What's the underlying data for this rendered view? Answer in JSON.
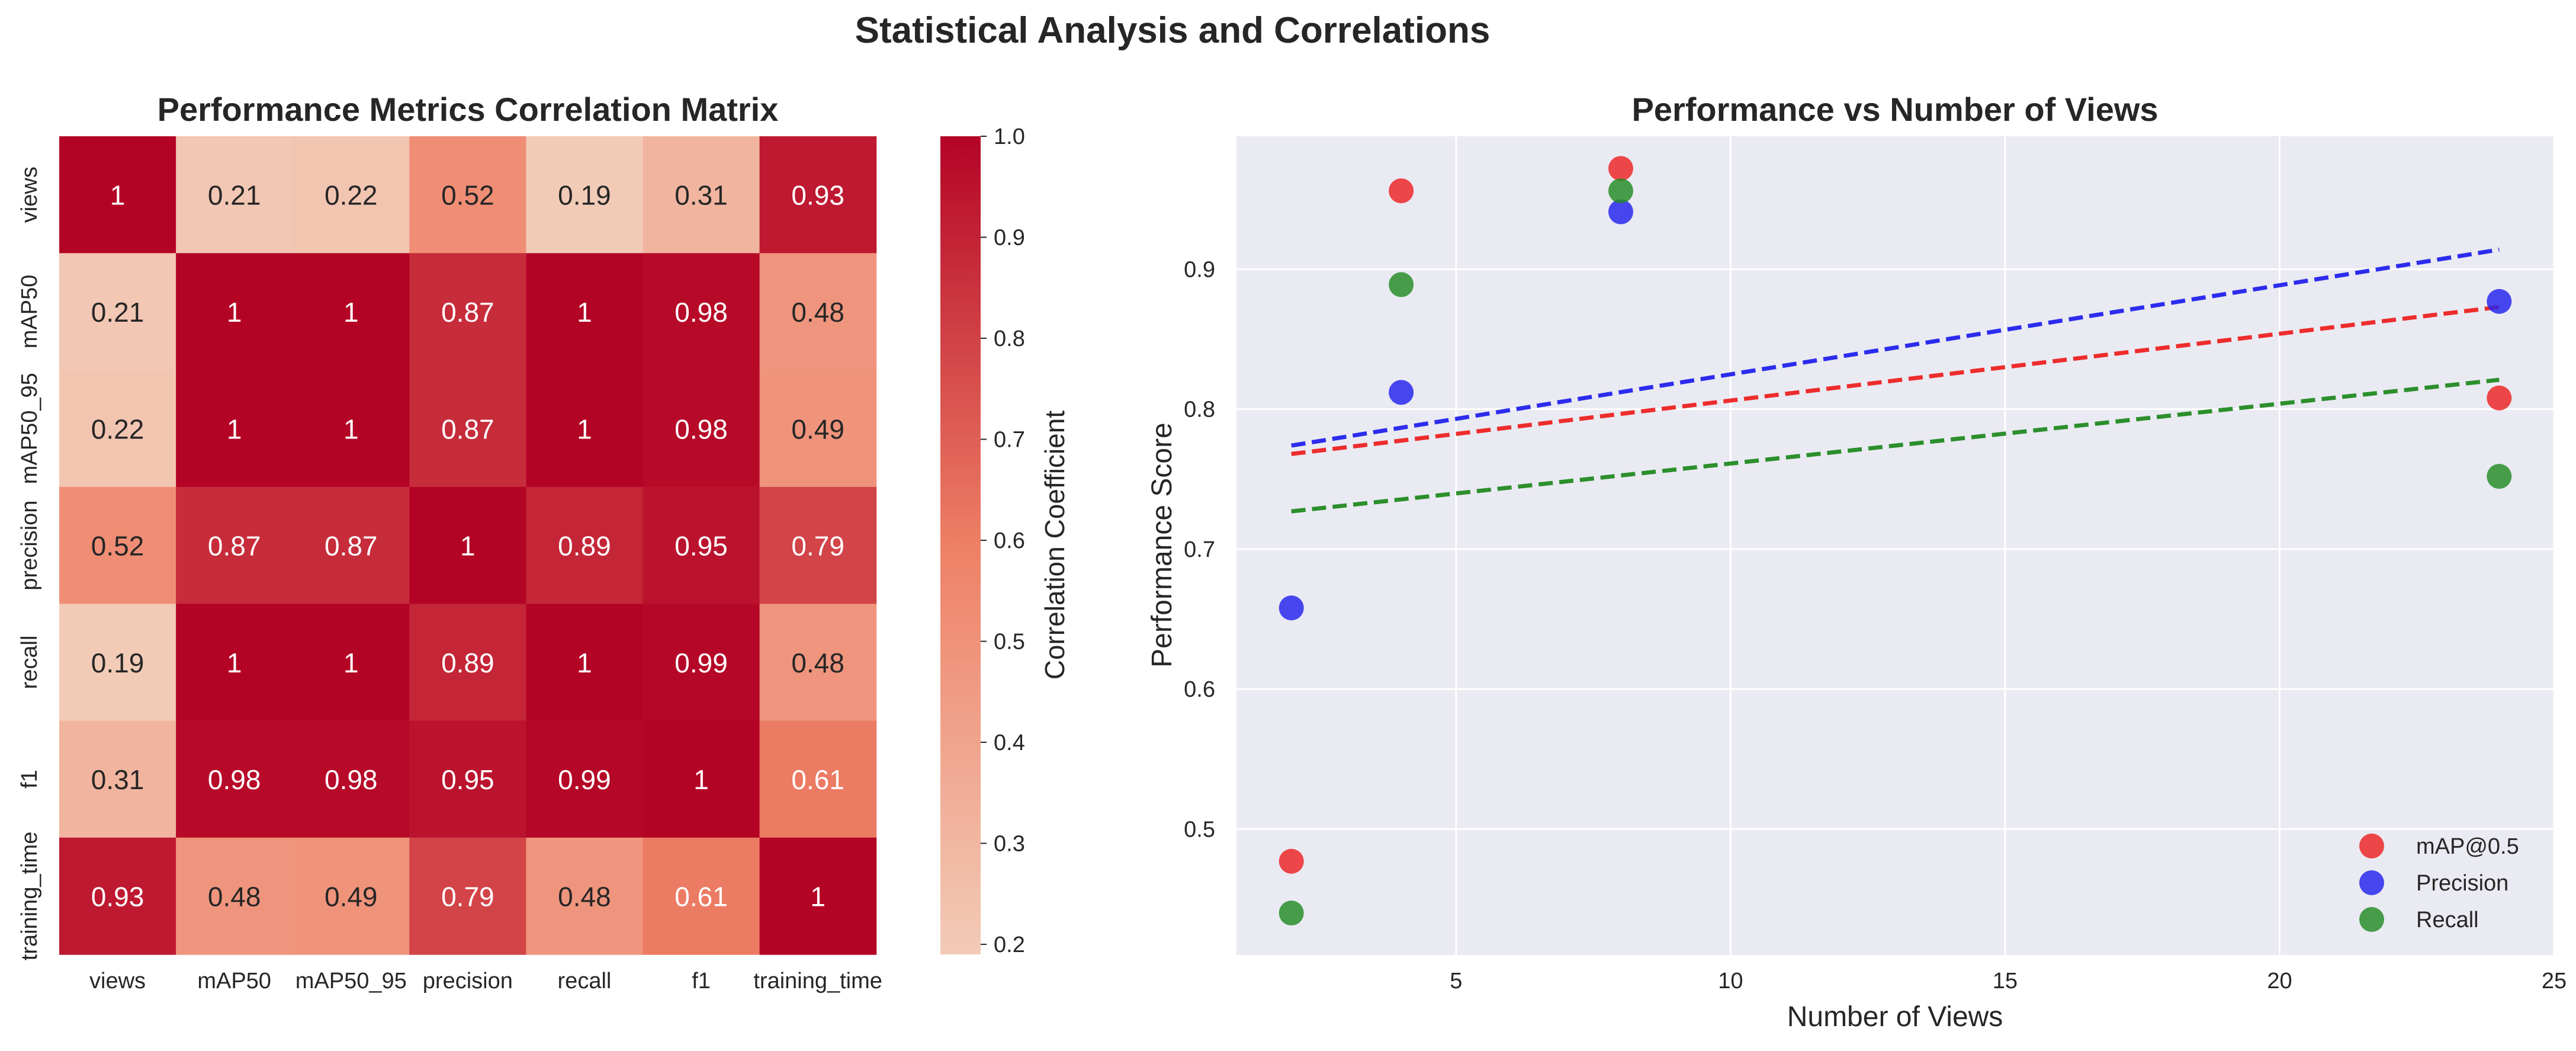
{
  "figure": {
    "title": "Statistical Analysis and Correlations"
  },
  "chart_data": [
    {
      "type": "heatmap",
      "title": "Performance Metrics Correlation Matrix",
      "row_labels": [
        "views",
        "mAP50",
        "mAP50_95",
        "precision",
        "recall",
        "f1",
        "training_time"
      ],
      "col_labels": [
        "views",
        "mAP50",
        "mAP50_95",
        "precision",
        "recall",
        "f1",
        "training_time"
      ],
      "values": [
        [
          1,
          0.21,
          0.22,
          0.52,
          0.19,
          0.31,
          0.93
        ],
        [
          0.21,
          1,
          1,
          0.87,
          1,
          0.98,
          0.48
        ],
        [
          0.22,
          1,
          1,
          0.87,
          1,
          0.98,
          0.49
        ],
        [
          0.52,
          0.87,
          0.87,
          1,
          0.89,
          0.95,
          0.79
        ],
        [
          0.19,
          1,
          1,
          0.89,
          1,
          0.99,
          0.48
        ],
        [
          0.31,
          0.98,
          0.98,
          0.95,
          0.99,
          1,
          0.61
        ],
        [
          0.93,
          0.48,
          0.49,
          0.79,
          0.48,
          0.61,
          1
        ]
      ],
      "value_labels": [
        [
          "1",
          "0.21",
          "0.22",
          "0.52",
          "0.19",
          "0.31",
          "0.93"
        ],
        [
          "0.21",
          "1",
          "1",
          "0.87",
          "1",
          "0.98",
          "0.48"
        ],
        [
          "0.22",
          "1",
          "1",
          "0.87",
          "1",
          "0.98",
          "0.49"
        ],
        [
          "0.52",
          "0.87",
          "0.87",
          "1",
          "0.89",
          "0.95",
          "0.79"
        ],
        [
          "0.19",
          "1",
          "1",
          "0.89",
          "1",
          "0.99",
          "0.48"
        ],
        [
          "0.31",
          "0.98",
          "0.98",
          "0.95",
          "0.99",
          "1",
          "0.61"
        ],
        [
          "0.93",
          "0.48",
          "0.49",
          "0.79",
          "0.48",
          "0.61",
          "1"
        ]
      ],
      "colorbar": {
        "label": "Correlation Coefficient",
        "range": [
          0.19,
          1.0
        ],
        "ticks": [
          0.2,
          0.3,
          0.4,
          0.5,
          0.6,
          0.7,
          0.8,
          0.9,
          1.0
        ],
        "tick_labels": [
          "0.2",
          "0.3",
          "0.4",
          "0.5",
          "0.6",
          "0.7",
          "0.8",
          "0.9",
          "1.0"
        ],
        "colormap": "Reds (light peach to dark crimson)",
        "color_low": "#f2cbb7",
        "color_high": "#b40426"
      }
    },
    {
      "type": "scatter",
      "title": "Performance vs Number of Views",
      "xlabel": "Number of Views",
      "ylabel": "Performance Score",
      "xlim": [
        1.0,
        25.0
      ],
      "ylim": [
        0.41,
        0.995
      ],
      "xticks": [
        5,
        10,
        15,
        20,
        25
      ],
      "xtick_labels": [
        "5",
        "10",
        "15",
        "20",
        "25"
      ],
      "yticks": [
        0.5,
        0.6,
        0.7,
        0.8,
        0.9
      ],
      "ytick_labels": [
        "0.5",
        "0.6",
        "0.7",
        "0.8",
        "0.9"
      ],
      "grid": true,
      "legend_position": "lower-right",
      "series": [
        {
          "name": "mAP@0.5",
          "color": "#ee2222",
          "x": [
            2,
            4,
            8,
            24
          ],
          "y": [
            0.477,
            0.956,
            0.972,
            0.808
          ],
          "trend": {
            "x": [
              2,
              24
            ],
            "y": [
              0.768,
              0.873
            ]
          }
        },
        {
          "name": "Precision",
          "color": "#2222ee",
          "x": [
            2,
            4,
            8,
            24
          ],
          "y": [
            0.658,
            0.812,
            0.941,
            0.877
          ],
          "trend": {
            "x": [
              2,
              24
            ],
            "y": [
              0.774,
              0.914
            ]
          }
        },
        {
          "name": "Recall",
          "color": "#228B22",
          "x": [
            2,
            4,
            8,
            24
          ],
          "y": [
            0.44,
            0.889,
            0.956,
            0.752
          ],
          "trend": {
            "x": [
              2,
              24
            ],
            "y": [
              0.727,
              0.821
            ]
          }
        }
      ]
    }
  ]
}
